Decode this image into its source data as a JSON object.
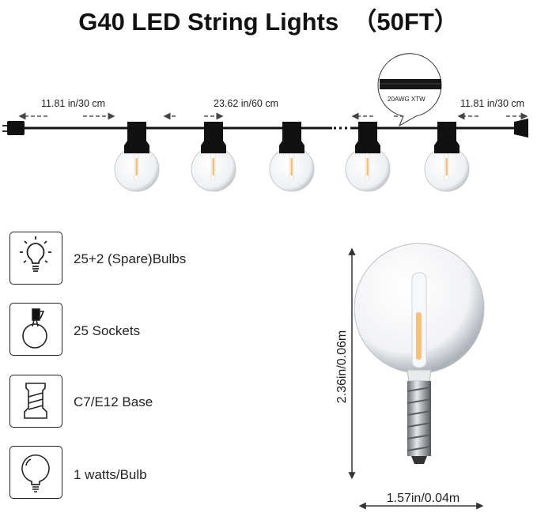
{
  "title": "G40 LED String Lights  （50FT）",
  "diagram": {
    "left_lead": "11.81 in/30 cm",
    "spacing": "23.62 in/60 cm",
    "right_lead": "11.81 in/30 cm",
    "wire_label": "20AWG XTW"
  },
  "features": [
    {
      "icon": "light-bulb-rays-icon",
      "label": "25+2 (Spare)Bulbs"
    },
    {
      "icon": "socket-bulb-icon",
      "label": "25 Sockets"
    },
    {
      "icon": "screw-base-icon",
      "label": "C7/E12 Base"
    },
    {
      "icon": "globe-bulb-icon",
      "label": "1 watts/Bulb"
    }
  ],
  "bulb_dimensions": {
    "height": "2.36in/0.06m",
    "width": "1.57in/0.04m"
  },
  "colors": {
    "filament": "#f2c27a",
    "cable": "#111111"
  }
}
